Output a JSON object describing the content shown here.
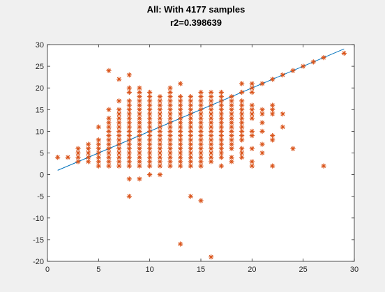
{
  "chart_data": {
    "type": "scatter",
    "title": "All: With 4177 samples",
    "subtitle": "r2=0.398639",
    "xlabel": "",
    "ylabel": "",
    "xlim": [
      0,
      30
    ],
    "ylim": [
      -20,
      30
    ],
    "x_ticks": [
      0,
      5,
      10,
      15,
      20,
      25,
      30
    ],
    "y_ticks": [
      -20,
      -15,
      -10,
      -5,
      0,
      5,
      10,
      15,
      20,
      25,
      30
    ],
    "grid": false,
    "legend": "none",
    "marker_color": "#d95319",
    "line_color": "#0072bd",
    "fit_line": {
      "x": [
        1,
        29
      ],
      "y": [
        1,
        29
      ]
    },
    "columns": [
      {
        "x": 1,
        "y": [
          4
        ]
      },
      {
        "x": 2,
        "y": [
          4
        ]
      },
      {
        "x": 3,
        "y": [
          3,
          4,
          5,
          6
        ]
      },
      {
        "x": 4,
        "y": [
          3,
          4,
          5,
          6,
          7
        ]
      },
      {
        "x": 5,
        "y": [
          2,
          3,
          4,
          5,
          6,
          7,
          8,
          11
        ]
      },
      {
        "x": 6,
        "y": [
          2,
          3,
          4,
          5,
          6,
          7,
          8,
          9,
          10,
          11,
          12,
          13,
          15,
          24
        ]
      },
      {
        "x": 7,
        "y": [
          2,
          3,
          4,
          5,
          6,
          7,
          8,
          9,
          10,
          11,
          12,
          13,
          14,
          15,
          17,
          22
        ]
      },
      {
        "x": 8,
        "y": [
          -5,
          -1,
          2,
          3,
          4,
          5,
          6,
          7,
          8,
          9,
          10,
          11,
          12,
          13,
          14,
          15,
          16,
          17,
          19,
          20,
          23
        ]
      },
      {
        "x": 9,
        "y": [
          -1,
          2,
          3,
          4,
          5,
          6,
          7,
          8,
          9,
          10,
          11,
          12,
          13,
          14,
          15,
          16,
          17,
          18,
          19,
          20
        ]
      },
      {
        "x": 10,
        "y": [
          0,
          2,
          3,
          4,
          5,
          6,
          7,
          8,
          9,
          10,
          11,
          12,
          13,
          14,
          15,
          16,
          17,
          18,
          19
        ]
      },
      {
        "x": 11,
        "y": [
          0,
          2,
          3,
          4,
          5,
          6,
          7,
          8,
          9,
          10,
          11,
          12,
          13,
          14,
          15,
          16,
          17,
          18
        ]
      },
      {
        "x": 12,
        "y": [
          2,
          3,
          4,
          5,
          6,
          7,
          8,
          9,
          10,
          11,
          12,
          13,
          14,
          15,
          16,
          17,
          18,
          19,
          20
        ]
      },
      {
        "x": 13,
        "y": [
          -16,
          2,
          3,
          4,
          5,
          6,
          7,
          8,
          9,
          10,
          11,
          12,
          13,
          14,
          15,
          16,
          17,
          18,
          21
        ]
      },
      {
        "x": 14,
        "y": [
          -5,
          2,
          3,
          4,
          5,
          6,
          7,
          8,
          9,
          10,
          11,
          12,
          13,
          14,
          15,
          16,
          17,
          18
        ]
      },
      {
        "x": 15,
        "y": [
          -6,
          2,
          3,
          4,
          5,
          6,
          7,
          8,
          9,
          10,
          11,
          12,
          13,
          14,
          15,
          16,
          17,
          18,
          19
        ]
      },
      {
        "x": 16,
        "y": [
          -19,
          3,
          4,
          5,
          6,
          7,
          8,
          9,
          10,
          11,
          12,
          13,
          14,
          15,
          16,
          17,
          18,
          19
        ]
      },
      {
        "x": 17,
        "y": [
          2,
          4,
          5,
          6,
          7,
          8,
          9,
          10,
          11,
          12,
          13,
          14,
          15,
          16,
          17,
          18,
          19
        ]
      },
      {
        "x": 18,
        "y": [
          3,
          4,
          6,
          7,
          8,
          9,
          10,
          11,
          12,
          13,
          14,
          15,
          16,
          17,
          18
        ]
      },
      {
        "x": 19,
        "y": [
          4,
          5,
          6,
          8,
          9,
          10,
          11,
          12,
          13,
          14,
          15,
          16,
          17,
          19,
          21
        ]
      },
      {
        "x": 20,
        "y": [
          2,
          3,
          6,
          9,
          10,
          13,
          14,
          15,
          16,
          19,
          20,
          21
        ]
      },
      {
        "x": 21,
        "y": [
          5,
          7,
          10,
          12,
          14,
          15,
          21
        ]
      },
      {
        "x": 22,
        "y": [
          2,
          8,
          9,
          14,
          15,
          16,
          22
        ]
      },
      {
        "x": 23,
        "y": [
          11,
          14,
          23
        ]
      },
      {
        "x": 24,
        "y": [
          6,
          24
        ]
      },
      {
        "x": 25,
        "y": [
          25
        ]
      },
      {
        "x": 26,
        "y": [
          26
        ]
      },
      {
        "x": 27,
        "y": [
          2,
          27
        ]
      },
      {
        "x": 29,
        "y": [
          28
        ]
      }
    ]
  }
}
